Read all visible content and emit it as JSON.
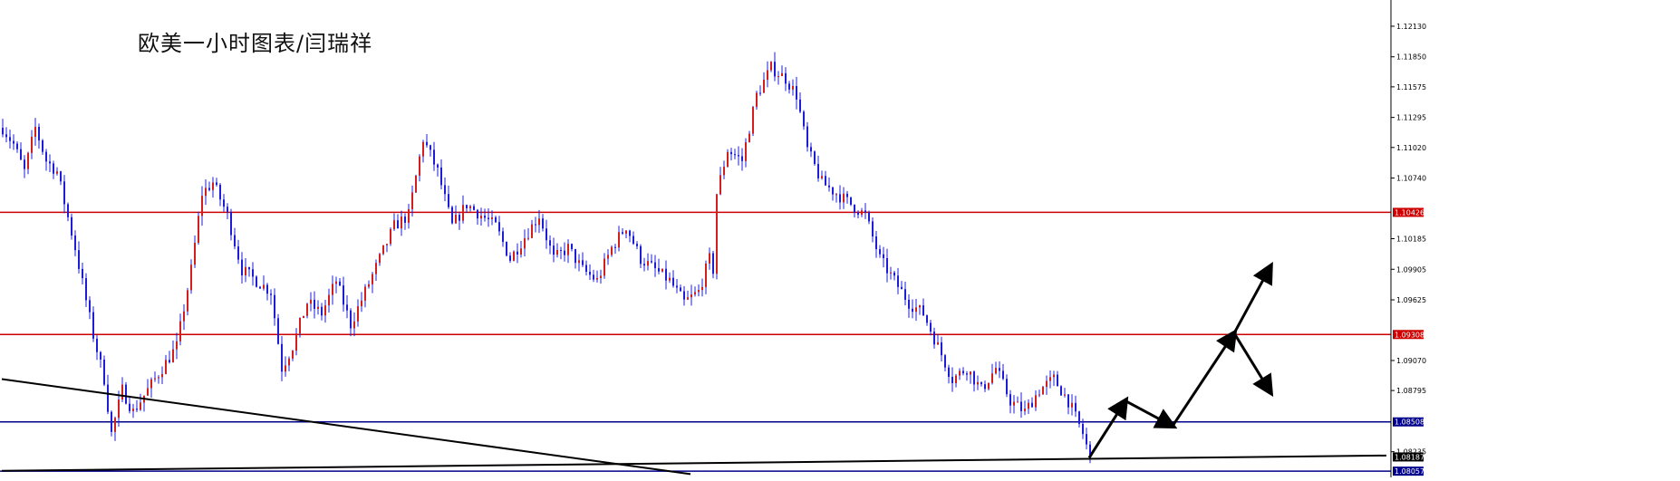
{
  "chart_data": {
    "type": "candlestick",
    "title": "欧美一小时图表/闫瑞祥",
    "ylim": [
      1.08,
      1.1237
    ],
    "y_ticks": [
      "1.12130",
      "1.11850",
      "1.11575",
      "1.11295",
      "1.11020",
      "1.10740",
      "1.10185",
      "1.09905",
      "1.09625",
      "1.09070",
      "1.08795",
      "1.08235"
    ],
    "y_tick_values": [
      1.1213,
      1.1185,
      1.11575,
      1.11295,
      1.1102,
      1.1074,
      1.10185,
      1.09905,
      1.09625,
      1.0907,
      1.08795,
      1.08235
    ],
    "price_tags": [
      {
        "label": "1.10426",
        "value": 1.10426,
        "color": "#cc0000"
      },
      {
        "label": "1.09308",
        "value": 1.09308,
        "color": "#cc0000"
      },
      {
        "label": "1.08508",
        "value": 1.08508,
        "color": "#00008b"
      },
      {
        "label": "1.08187",
        "value": 1.08187,
        "color": "#000000"
      },
      {
        "label": "1.08057",
        "value": 1.08057,
        "color": "#00008b"
      }
    ],
    "horizontal_lines": [
      {
        "value": 1.10426,
        "color": "#cc0000"
      },
      {
        "value": 1.09308,
        "color": "#cc0000"
      },
      {
        "value": 1.08508,
        "color": "#00008b"
      },
      {
        "value": 1.08057,
        "color": "#00008b"
      }
    ],
    "trend_lines": [
      {
        "from_bar": 0,
        "from_value": 1.089,
        "to_bar": 190,
        "to_value": 1.0803,
        "color": "#000000"
      },
      {
        "from_bar": 0,
        "from_value": 1.0806,
        "to_bar": 382,
        "to_value": 1.082,
        "color": "#000000"
      }
    ],
    "forecast_arrows": [
      {
        "from_bar": 300,
        "from_value": 1.0818,
        "to_bar": 310,
        "to_value": 1.087
      },
      {
        "from_bar": 310,
        "from_value": 1.087,
        "to_bar": 323,
        "to_value": 1.0847
      },
      {
        "from_bar": 323,
        "from_value": 1.0847,
        "to_bar": 340,
        "to_value": 1.0932
      },
      {
        "from_bar": 340,
        "from_value": 1.0932,
        "to_bar": 350,
        "to_value": 1.0993
      },
      {
        "from_bar": 340,
        "from_value": 1.0932,
        "to_bar": 350,
        "to_value": 1.0878
      }
    ],
    "bar_count": 382,
    "waypoints": [
      [
        0,
        1.112
      ],
      [
        3,
        1.1105
      ],
      [
        6,
        1.108
      ],
      [
        9,
        1.112
      ],
      [
        12,
        1.109
      ],
      [
        15,
        1.108
      ],
      [
        20,
        1.101
      ],
      [
        25,
        1.093
      ],
      [
        28,
        1.089
      ],
      [
        30,
        1.084
      ],
      [
        33,
        1.088
      ],
      [
        36,
        1.086
      ],
      [
        40,
        1.088
      ],
      [
        44,
        1.09
      ],
      [
        48,
        1.092
      ],
      [
        52,
        1.099
      ],
      [
        55,
        1.106
      ],
      [
        58,
        1.107
      ],
      [
        62,
        1.104
      ],
      [
        66,
        1.099
      ],
      [
        70,
        1.098
      ],
      [
        74,
        1.097
      ],
      [
        77,
        1.09
      ],
      [
        80,
        1.092
      ],
      [
        84,
        1.096
      ],
      [
        88,
        1.095
      ],
      [
        92,
        1.098
      ],
      [
        96,
        1.094
      ],
      [
        100,
        1.097
      ],
      [
        104,
        1.1
      ],
      [
        108,
        1.103
      ],
      [
        112,
        1.104
      ],
      [
        116,
        1.111
      ],
      [
        120,
        1.108
      ],
      [
        124,
        1.103
      ],
      [
        128,
        1.105
      ],
      [
        132,
        1.104
      ],
      [
        136,
        1.103
      ],
      [
        140,
        1.1
      ],
      [
        144,
        1.102
      ],
      [
        148,
        1.104
      ],
      [
        152,
        1.1
      ],
      [
        156,
        1.101
      ],
      [
        160,
        1.099
      ],
      [
        164,
        1.098
      ],
      [
        168,
        1.101
      ],
      [
        172,
        1.103
      ],
      [
        176,
        1.1
      ],
      [
        180,
        1.099
      ],
      [
        184,
        1.098
      ],
      [
        188,
        1.096
      ],
      [
        192,
        1.097
      ],
      [
        196,
        1.099
      ],
      [
        200,
        1.098
      ],
      [
        195,
        1.1
      ],
      [
        197,
        1.106
      ],
      [
        200,
        1.11
      ],
      [
        204,
        1.109
      ],
      [
        208,
        1.115
      ],
      [
        212,
        1.1175
      ],
      [
        216,
        1.1165
      ],
      [
        219,
        1.115
      ],
      [
        222,
        1.11
      ],
      [
        226,
        1.107
      ],
      [
        230,
        1.106
      ],
      [
        234,
        1.105
      ],
      [
        238,
        1.104
      ],
      [
        242,
        1.1
      ],
      [
        246,
        1.098
      ],
      [
        250,
        1.096
      ],
      [
        254,
        1.095
      ],
      [
        258,
        1.092
      ],
      [
        262,
        1.089
      ],
      [
        266,
        1.09
      ],
      [
        270,
        1.088
      ],
      [
        274,
        1.09
      ],
      [
        278,
        1.087
      ],
      [
        282,
        1.086
      ],
      [
        286,
        1.088
      ],
      [
        290,
        1.089
      ],
      [
        294,
        1.087
      ],
      [
        298,
        1.084
      ],
      [
        300,
        1.0818
      ]
    ],
    "up_color": "#d11f1f",
    "down_color": "#1d1dd8",
    "wick_color": "#1d1dd8"
  }
}
